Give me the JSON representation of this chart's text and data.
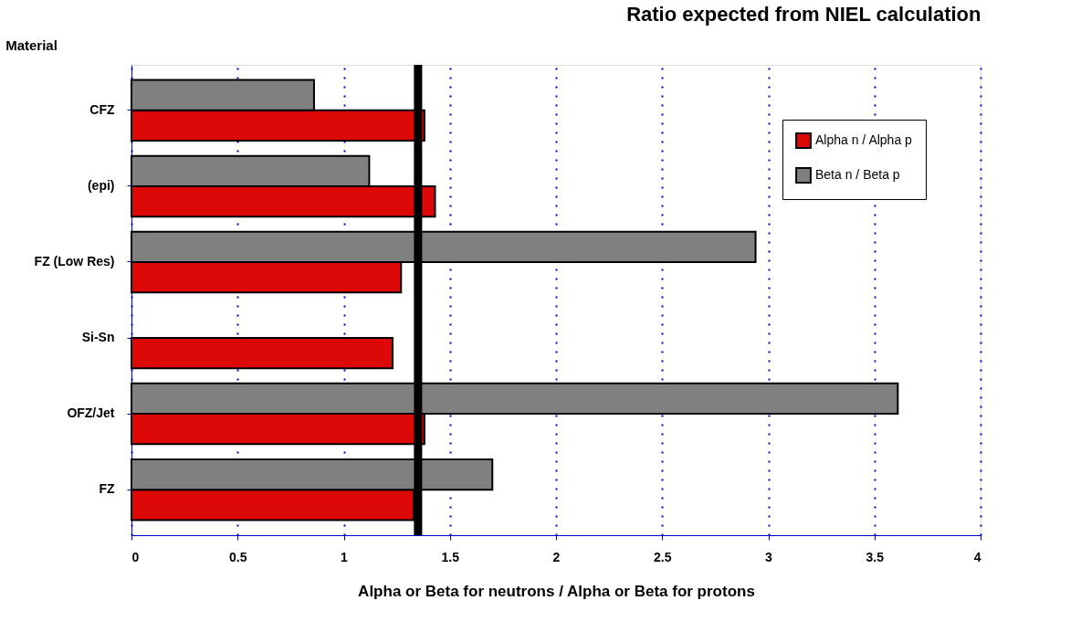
{
  "chart_data": {
    "type": "bar",
    "orientation": "horizontal",
    "title": "Ratio expected from NIEL calculation",
    "xlabel": "Alpha or Beta for neutrons / Alpha or Beta for protons",
    "ylabel": "Material",
    "categories": [
      "CFZ",
      "(epi)",
      "FZ (Low Res)",
      "Si-Sn",
      "OFZ/Jet",
      "FZ"
    ],
    "series": [
      {
        "name": "Alpha n / Alpha p",
        "color": "#dd0808",
        "values": [
          1.38,
          1.43,
          1.27,
          1.23,
          1.38,
          1.33
        ]
      },
      {
        "name": "Beta n / Beta p",
        "color": "#808080",
        "values": [
          0.86,
          1.12,
          2.94,
          null,
          3.61,
          1.7
        ]
      }
    ],
    "xlim": [
      0,
      4
    ],
    "xticks": [
      0,
      0.5,
      1,
      1.5,
      2,
      2.5,
      3,
      3.5,
      4
    ],
    "ref_lines": [
      {
        "axis": "x",
        "value": 1.35,
        "color": "#000000"
      }
    ],
    "grid": "x",
    "legend": "top right"
  }
}
